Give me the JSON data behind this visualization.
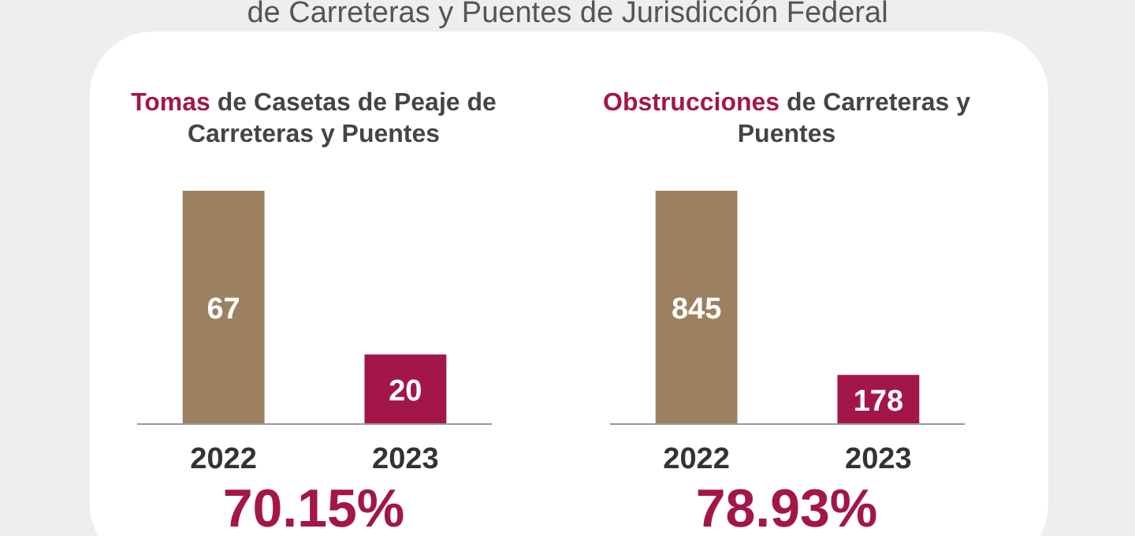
{
  "chart_data": [
    {
      "type": "bar",
      "subtitle": "de Carreteras y Puentes de Jurisdicción Federal",
      "title": "Tomas de Casetas de Peaje de Carreteras y Puentes",
      "categories": [
        "2022",
        "2023"
      ],
      "values": [
        67,
        20
      ],
      "colors": [
        "#9c8160",
        "#a3164a"
      ],
      "data_labels": true,
      "annotations": [
        "70.15%"
      ]
    },
    {
      "type": "bar",
      "title": "Obstrucciones de Carreteras y Puentes",
      "categories": [
        "2022",
        "2023"
      ],
      "values": [
        845,
        178
      ],
      "colors": [
        "#9c8160",
        "#a3164a"
      ],
      "data_labels": true,
      "annotations": [
        "78.93%"
      ]
    }
  ]
}
